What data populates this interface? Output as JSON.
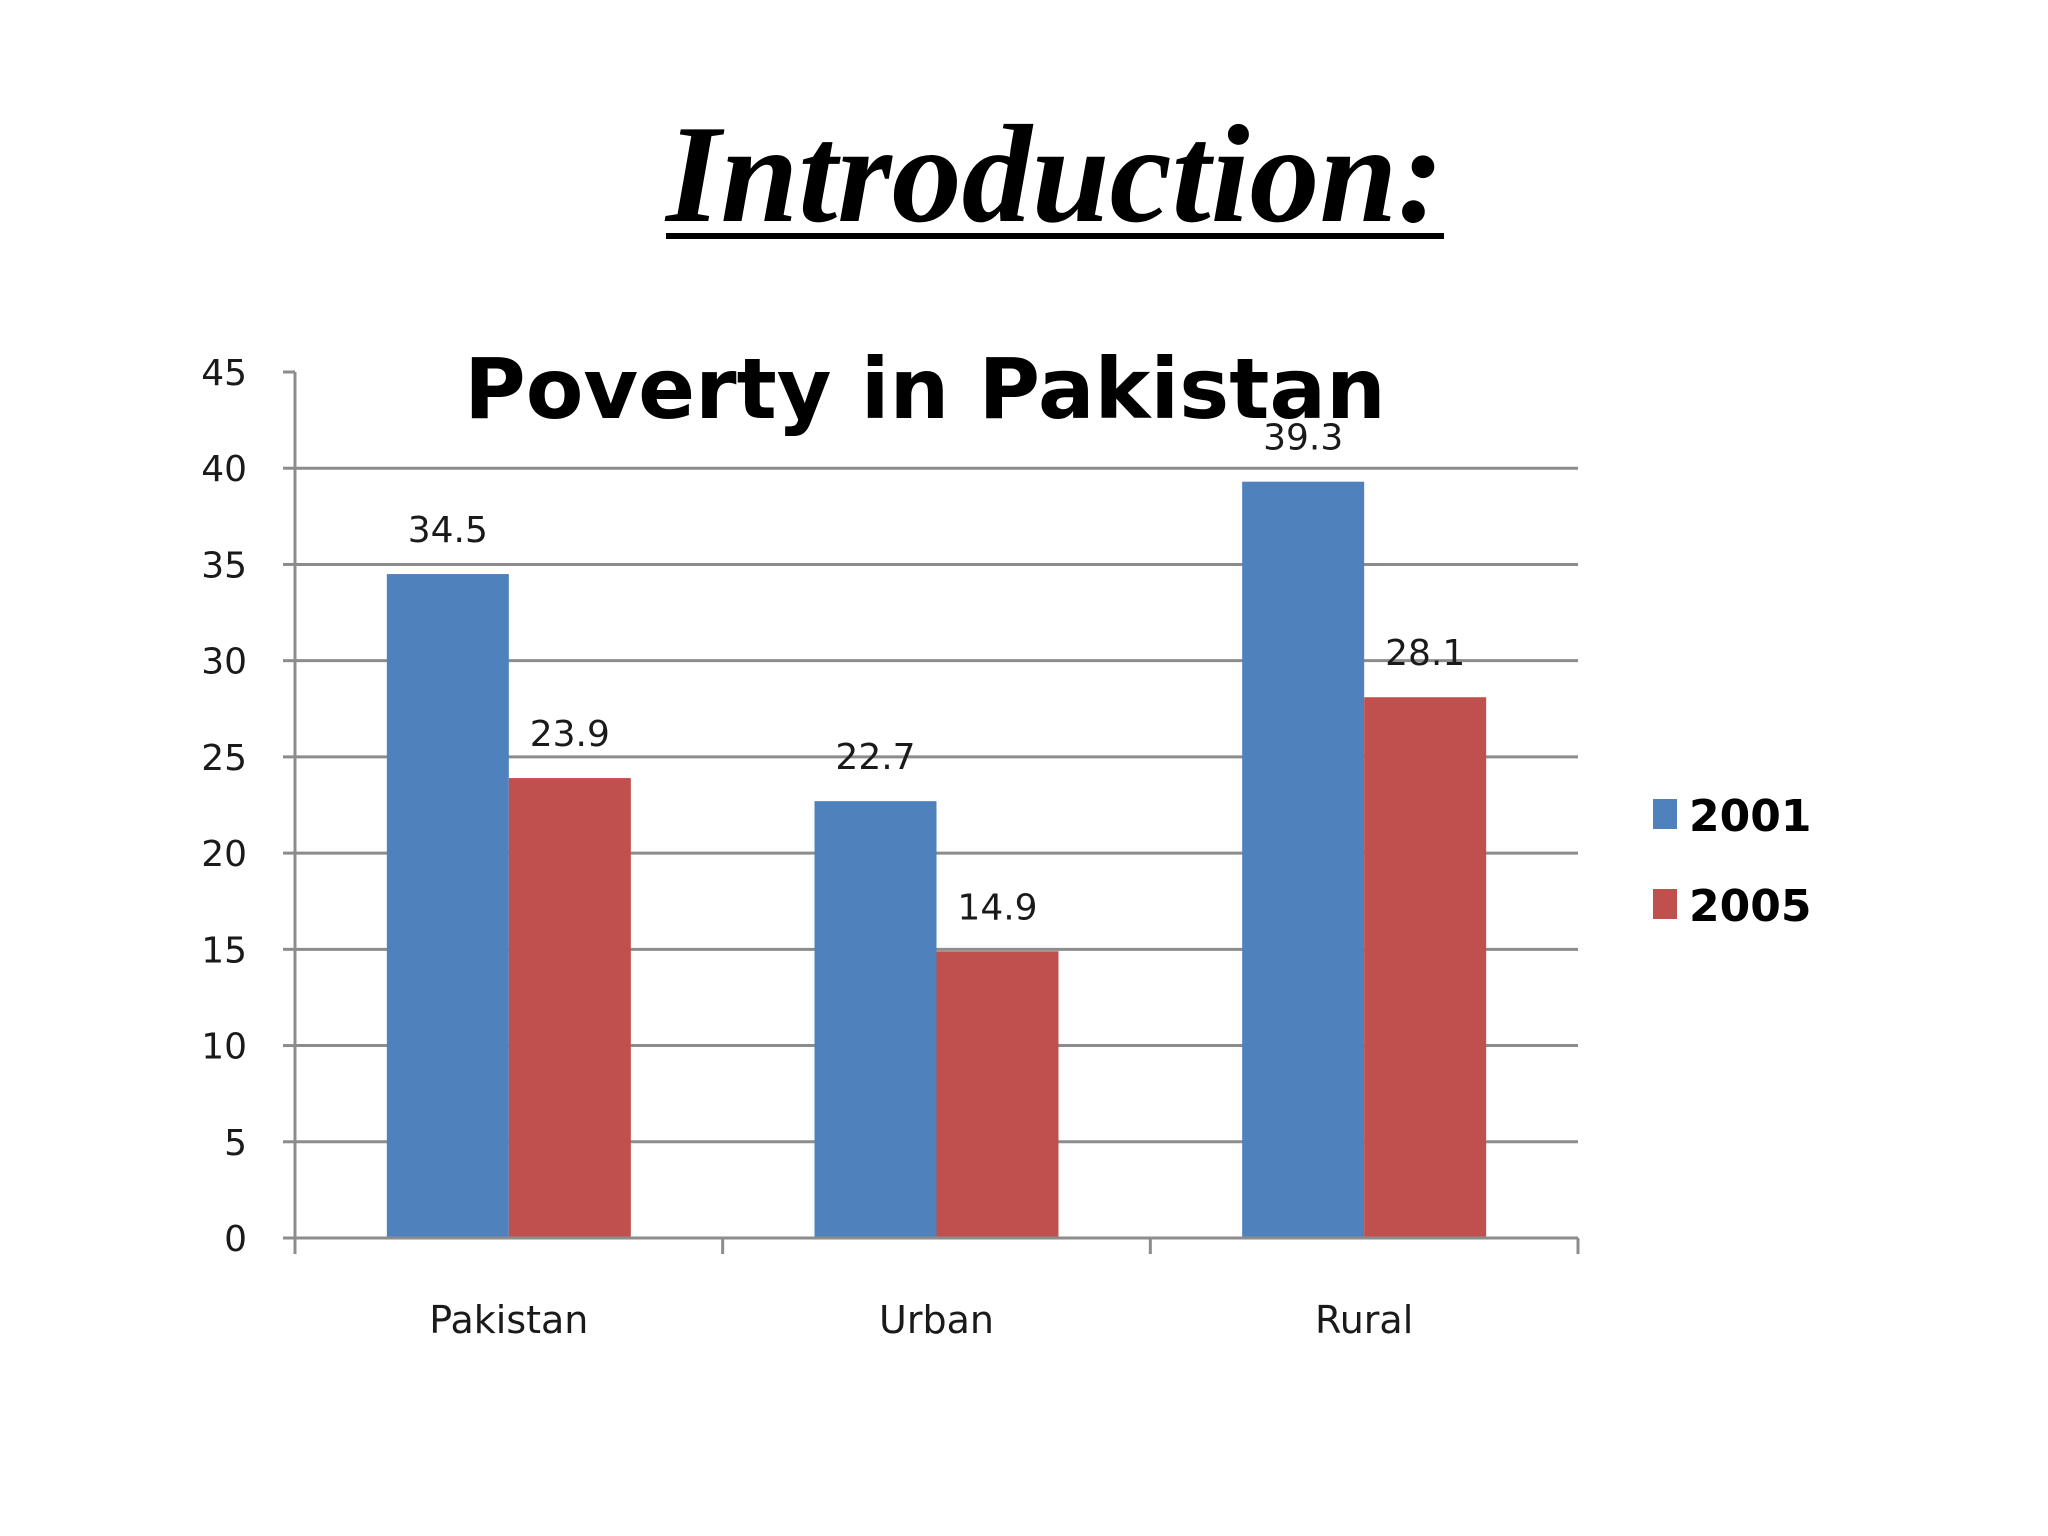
{
  "slide": {
    "title": "Introduction:"
  },
  "chart_data": {
    "type": "bar",
    "title": "Poverty in Pakistan",
    "categories": [
      "Pakistan",
      "Urban",
      "Rural"
    ],
    "series": [
      {
        "name": "2001",
        "color": "#4f81bd",
        "values": [
          34.5,
          22.7,
          39.3
        ]
      },
      {
        "name": "2005",
        "color": "#c0504d",
        "values": [
          23.9,
          14.9,
          28.1
        ]
      }
    ],
    "ylim": [
      0,
      45
    ],
    "yticks": [
      0,
      5,
      10,
      15,
      20,
      25,
      30,
      35,
      40,
      45
    ],
    "grid": true,
    "legend": "right",
    "xlabel": "",
    "ylabel": ""
  }
}
